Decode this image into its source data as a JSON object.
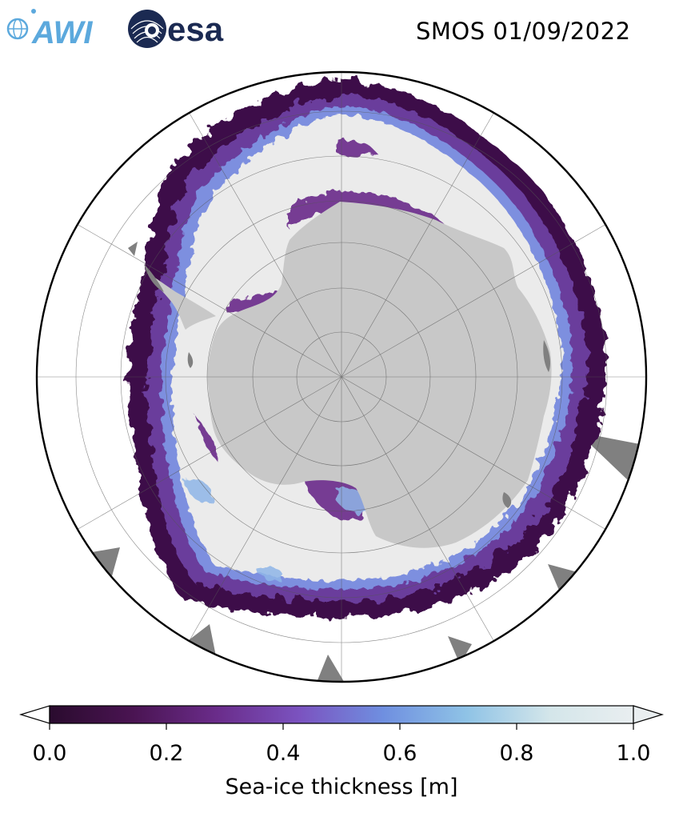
{
  "title": "SMOS 01/09/2022",
  "logos": {
    "awi": {
      "text": "AWI",
      "color": "#5ca9dd"
    },
    "esa": {
      "text": "esa",
      "color": "#1b2a52"
    }
  },
  "map": {
    "projection": "south-polar-stereographic",
    "land_color": "#c8c8c8",
    "no_data_color": "#808080",
    "thick_ice_color": "#ebebeb",
    "ocean_color": "#ffffff",
    "graticule": true
  },
  "colorbar": {
    "label": "Sea-ice thickness [m]",
    "min": 0.0,
    "max": 1.0,
    "ticks": [
      "0.0",
      "0.2",
      "0.4",
      "0.6",
      "0.8",
      "1.0"
    ],
    "extend": "both",
    "colors": [
      "#2a0b2e",
      "#4a1452",
      "#6a2c8a",
      "#7b53c0",
      "#6f8fe0",
      "#8fc3e6",
      "#d4e6ea",
      "#e9eef0"
    ]
  }
}
